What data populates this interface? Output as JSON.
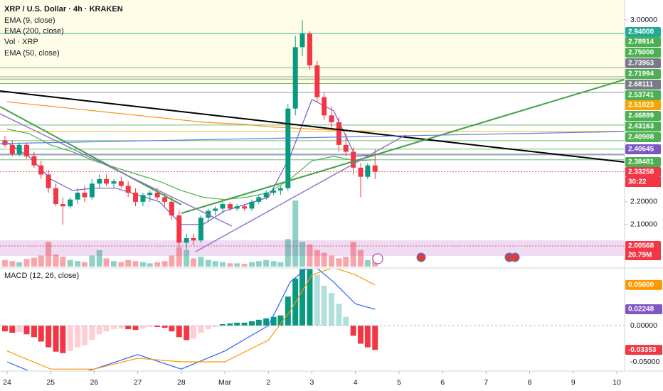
{
  "chart_data": [
    {
      "type": "candlestick",
      "title": "XRP / U.S. Dollar · 4h · KRAKEN",
      "x": [
        -0.05,
        0.12,
        0.28,
        0.45,
        0.62,
        0.78,
        0.95,
        1.12,
        1.28,
        1.45,
        1.62,
        1.78,
        1.95,
        2.12,
        2.28,
        2.45,
        2.62,
        2.78,
        2.95,
        3.12,
        3.28,
        3.45,
        3.62,
        3.78,
        3.95,
        4.12,
        4.28,
        4.45,
        4.62,
        4.78,
        4.95,
        5.12,
        5.28,
        5.45,
        5.62,
        5.78,
        5.95,
        6.12,
        6.28,
        6.45,
        6.62,
        6.78,
        6.95,
        7.12,
        7.28,
        7.45,
        7.62,
        7.78,
        7.95,
        8.12,
        8.28,
        8.45
      ],
      "open": [
        2.47,
        2.45,
        2.41,
        2.45,
        2.4,
        2.36,
        2.32,
        2.26,
        2.19,
        2.18,
        2.21,
        2.24,
        2.22,
        2.28,
        2.3,
        2.28,
        2.29,
        2.27,
        2.24,
        2.2,
        2.23,
        2.24,
        2.22,
        2.2,
        2.14,
        2.02,
        2.04,
        2.03,
        2.13,
        2.16,
        2.17,
        2.19,
        2.17,
        2.18,
        2.17,
        2.2,
        2.22,
        2.24,
        2.25,
        2.26,
        2.61,
        2.88,
        2.94,
        2.8,
        2.66,
        2.58,
        2.55,
        2.45,
        2.42,
        2.35,
        2.31,
        2.36
      ],
      "high": [
        2.49,
        2.47,
        2.46,
        2.46,
        2.42,
        2.38,
        2.34,
        2.28,
        2.22,
        2.22,
        2.26,
        2.27,
        2.3,
        2.32,
        2.32,
        2.3,
        2.31,
        2.29,
        2.26,
        2.24,
        2.25,
        2.26,
        2.24,
        2.22,
        2.16,
        2.06,
        2.06,
        2.14,
        2.17,
        2.18,
        2.2,
        2.2,
        2.19,
        2.19,
        2.21,
        2.23,
        2.25,
        2.26,
        2.27,
        2.63,
        2.93,
        3.0,
        2.95,
        2.82,
        2.68,
        2.62,
        2.57,
        2.5,
        2.44,
        2.37,
        2.37,
        2.43
      ],
      "low": [
        2.44,
        2.4,
        2.4,
        2.39,
        2.35,
        2.3,
        2.24,
        2.18,
        2.1,
        2.17,
        2.19,
        2.2,
        2.21,
        2.26,
        2.27,
        2.26,
        2.26,
        2.22,
        2.18,
        2.18,
        2.2,
        2.21,
        2.18,
        2.12,
        2.0,
        1.99,
        2.01,
        2.02,
        2.11,
        2.14,
        2.15,
        2.16,
        2.16,
        2.16,
        2.16,
        2.19,
        2.21,
        2.23,
        2.23,
        2.25,
        2.58,
        2.84,
        2.78,
        2.64,
        2.56,
        2.52,
        2.42,
        2.4,
        2.32,
        2.22,
        2.3,
        2.3
      ],
      "close": [
        2.45,
        2.41,
        2.45,
        2.4,
        2.36,
        2.32,
        2.26,
        2.19,
        2.18,
        2.21,
        2.24,
        2.22,
        2.28,
        2.3,
        2.28,
        2.29,
        2.27,
        2.24,
        2.2,
        2.23,
        2.24,
        2.22,
        2.2,
        2.14,
        2.02,
        2.04,
        2.03,
        2.13,
        2.16,
        2.17,
        2.19,
        2.17,
        2.18,
        2.17,
        2.2,
        2.22,
        2.24,
        2.25,
        2.26,
        2.61,
        2.88,
        2.94,
        2.8,
        2.66,
        2.58,
        2.55,
        2.45,
        2.42,
        2.35,
        2.31,
        2.36,
        2.33258
      ],
      "up_color": "#089981",
      "down_color": "#f23645",
      "volume": {
        "name": "Vol · XRP",
        "vlim": [
          0,
          120
        ],
        "values": [
          12,
          10,
          8,
          14,
          16,
          20,
          45,
          22,
          18,
          12,
          10,
          8,
          20,
          30,
          15,
          10,
          8,
          12,
          10,
          8,
          6,
          8,
          10,
          20,
          35,
          30,
          15,
          18,
          12,
          10,
          8,
          6,
          6,
          5,
          8,
          10,
          12,
          10,
          8,
          50,
          120,
          45,
          40,
          30,
          25,
          20,
          15,
          18,
          45,
          30,
          12,
          20.79
        ],
        "last_label": "20.79M"
      },
      "ema_x": [
        0,
        0.5,
        1,
        1.5,
        2,
        2.5,
        3,
        3.5,
        4,
        4.5,
        5,
        5.5,
        6,
        6.5,
        7,
        7.5,
        8,
        8.45
      ],
      "lines": [
        {
          "name": "EMA (9, close)",
          "color": "#7e57c2",
          "values": [
            2.46,
            2.4,
            2.3,
            2.25,
            2.26,
            2.26,
            2.23,
            2.2,
            2.1,
            2.1,
            2.16,
            2.19,
            2.22,
            2.4,
            2.65,
            2.6,
            2.4,
            2.40645
          ]
        },
        {
          "name": "EMA (200, close)",
          "color": "#f7931a",
          "values": [
            2.64,
            2.63,
            2.62,
            2.61,
            2.6,
            2.59,
            2.58,
            2.57,
            2.56,
            2.55,
            2.545,
            2.54,
            2.53,
            2.525,
            2.52,
            2.515,
            2.512,
            2.51023
          ]
        },
        {
          "name": "EMA (50, close)",
          "color": "#4caf50",
          "values": [
            2.52,
            2.5,
            2.45,
            2.42,
            2.38,
            2.35,
            2.32,
            2.29,
            2.25,
            2.22,
            2.21,
            2.22,
            2.24,
            2.3,
            2.38,
            2.4,
            2.38,
            2.38481
          ]
        }
      ],
      "ylim": [
        1.915,
        3.0875
      ],
      "yticks": [
        {
          "value": 3,
          "label": "3.00000"
        },
        {
          "value": 2.2,
          "label": "2.20000"
        },
        {
          "value": 2.1,
          "label": "2.10000"
        }
      ],
      "levels": [
        {
          "value": 2.94,
          "label": "2.94000",
          "color": "#22ab94"
        },
        {
          "value": 2.78914,
          "label": "2.78914",
          "color": "#4caf50"
        },
        {
          "value": 2.75,
          "label": "2.75000",
          "color": "#4caf50"
        },
        {
          "value": 2.73963,
          "label": "2.73963",
          "color": "#787b86"
        },
        {
          "value": 2.71994,
          "label": "2.71994",
          "color": "#4caf50"
        },
        {
          "value": 2.68111,
          "label": "2.68111",
          "color": "#787b86"
        },
        {
          "value": 2.53741,
          "label": "2.53741",
          "color": "#4caf50"
        },
        {
          "value": 2.51023,
          "label": "2.51023",
          "color": "#f7a600"
        },
        {
          "value": 2.46899,
          "label": "2.46899",
          "color": "#4caf50"
        },
        {
          "value": 2.43163,
          "label": "2.43163",
          "color": "#4caf50"
        },
        {
          "value": 2.40988,
          "label": "2.40988",
          "color": "#4caf50"
        },
        {
          "value": 2.40645,
          "label": "2.40645",
          "color": "#7e57c2"
        },
        {
          "value": 2.38481,
          "label": "2.38481",
          "color": "#4caf50"
        },
        {
          "value": 2.33258,
          "label": "2.33258",
          "color": "#f23645"
        },
        {
          "value": 2.00568,
          "label": "2.00568",
          "color": "#f23645"
        }
      ],
      "countdown": "30:22",
      "xlim": [
        -0.163,
        14.18
      ],
      "xticks": [
        {
          "value": 0,
          "label": "24"
        },
        {
          "value": 1,
          "label": "25"
        },
        {
          "value": 2,
          "label": "26"
        },
        {
          "value": 3,
          "label": "27"
        },
        {
          "value": 4,
          "label": "28"
        },
        {
          "value": 5,
          "label": "Mar"
        },
        {
          "value": 6,
          "label": "2"
        },
        {
          "value": 7,
          "label": "3"
        },
        {
          "value": 8,
          "label": "4"
        },
        {
          "value": 9,
          "label": "5"
        },
        {
          "value": 10,
          "label": "6"
        },
        {
          "value": 11,
          "label": "7"
        },
        {
          "value": 12,
          "label": "8"
        },
        {
          "value": 13,
          "label": "9"
        },
        {
          "value": 14,
          "label": "10"
        }
      ]
    },
    {
      "type": "macd",
      "title": "MACD (12, 26, close)",
      "histogram": [
        -0.008,
        -0.01,
        -0.009,
        -0.012,
        -0.016,
        -0.022,
        -0.03,
        -0.036,
        -0.038,
        -0.035,
        -0.03,
        -0.027,
        -0.02,
        -0.012,
        -0.008,
        -0.005,
        -0.004,
        -0.005,
        -0.006,
        -0.004,
        -0.002,
        -0.002,
        -0.003,
        -0.008,
        -0.016,
        -0.02,
        -0.018,
        -0.01,
        -0.005,
        -0.002,
        0.002,
        0.003,
        0.004,
        0.004,
        0.006,
        0.008,
        0.01,
        0.012,
        0.014,
        0.04,
        0.065,
        0.078,
        0.078,
        0.07,
        0.055,
        0.045,
        0.03,
        0.012,
        -0.014,
        -0.025,
        -0.03,
        -0.03353
      ],
      "line_x": [
        0,
        1,
        2,
        3,
        4,
        5,
        6,
        6.5,
        7,
        7.5,
        8,
        8.45
      ],
      "lines": [
        {
          "color": "#2962ff",
          "values": [
            -0.05,
            -0.075,
            -0.06,
            -0.04,
            -0.06,
            -0.035,
            0.0,
            0.06,
            0.085,
            0.06,
            0.03,
            0.02248
          ]
        },
        {
          "color": "#ff9800",
          "values": [
            -0.035,
            -0.06,
            -0.06,
            -0.045,
            -0.05,
            -0.05,
            -0.02,
            0.02,
            0.07,
            0.08,
            0.07,
            0.056
          ]
        }
      ],
      "ylim": [
        -0.0608,
        0.0784
      ],
      "yticks": [
        {
          "value": 0,
          "label": "0.00000"
        },
        {
          "value": -0.05,
          "label": "-0.05000"
        }
      ],
      "tags": [
        {
          "value": 0.056,
          "label": "0.05600",
          "color": "#ff9800"
        },
        {
          "value": 0.02248,
          "label": "0.02248",
          "color": "#7e57c2"
        },
        {
          "value": -0.03353,
          "label": "-0.03353",
          "color": "#f23645"
        }
      ]
    }
  ]
}
